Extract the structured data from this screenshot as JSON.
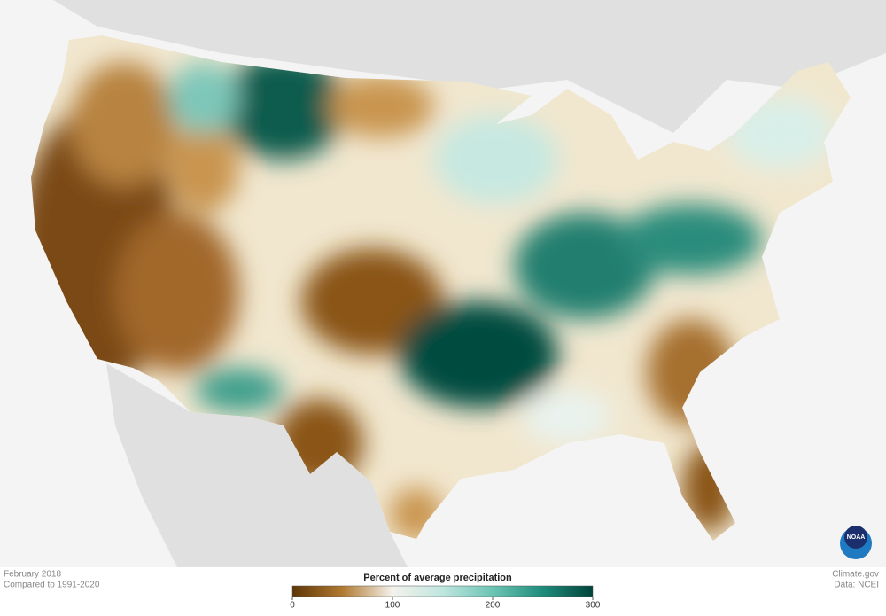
{
  "caption": {
    "date": "February 2018",
    "baseline": "Compared to 1991-2020"
  },
  "credit": {
    "site": "Climate.gov",
    "source": "Data: NCEI",
    "logo": "NOAA"
  },
  "legend": {
    "title": "Percent of average precipitation",
    "range": [
      0,
      300
    ],
    "ticks": [
      0,
      100,
      200,
      300
    ],
    "colors": [
      "#5e3607",
      "#b07a30",
      "#f4f2ec",
      "#bfe6df",
      "#6cc4b4",
      "#1f8c7b",
      "#00443a"
    ]
  }
}
